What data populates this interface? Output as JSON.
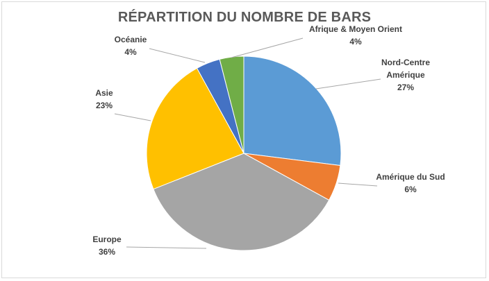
{
  "chart_data": {
    "type": "pie",
    "title": "RÉPARTITION DU NOMBRE DE BARS",
    "slices": [
      {
        "label_lines": [
          "Nord-Centre",
          "Amérique"
        ],
        "value_label": "27%",
        "value": 27,
        "color": "#5b9bd5"
      },
      {
        "label_lines": [
          "Amérique du Sud"
        ],
        "value_label": "6%",
        "value": 6,
        "color": "#ed7d31"
      },
      {
        "label_lines": [
          "Europe"
        ],
        "value_label": "36%",
        "value": 36,
        "color": "#a5a5a5"
      },
      {
        "label_lines": [
          "Asie"
        ],
        "value_label": "23%",
        "value": 23,
        "color": "#ffc000"
      },
      {
        "label_lines": [
          "Océanie"
        ],
        "value_label": "4%",
        "value": 4,
        "color": "#4472c4"
      },
      {
        "label_lines": [
          "Afrique & Moyen Orient"
        ],
        "value_label": "4%",
        "value": 4,
        "color": "#70ad47"
      }
    ]
  }
}
